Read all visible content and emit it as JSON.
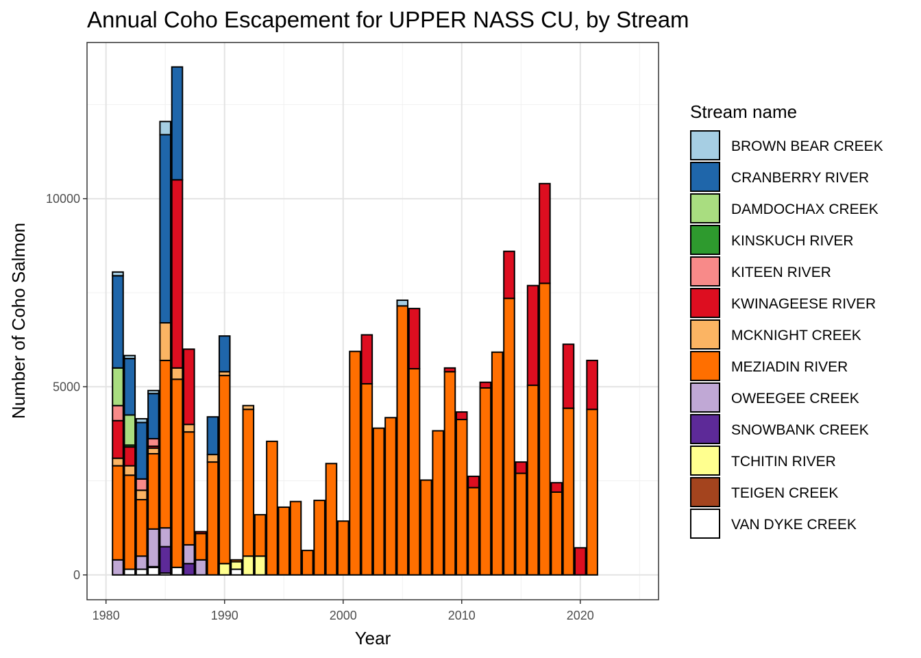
{
  "chart_data": {
    "type": "bar",
    "stacked": true,
    "title": "Annual Coho Escapement for UPPER NASS CU, by Stream",
    "xlabel": "Year",
    "ylabel": "Number of Coho Salmon",
    "xlim": [
      1978.4,
      2026.6
    ],
    "ylim": [
      -660,
      14150
    ],
    "x_ticks": [
      1980,
      1990,
      2000,
      2010,
      2020
    ],
    "y_ticks": [
      0,
      5000,
      10000
    ],
    "grid": true,
    "legend": {
      "title": "Stream name",
      "position": "right"
    },
    "series": [
      {
        "name": "BROWN BEAR CREEK",
        "color": "#A6CEE3",
        "values": {
          "1981": 100,
          "1982": 80,
          "1983": 100,
          "1984": 80,
          "1985": 350,
          "1986": 0,
          "1990": 0,
          "2005": 150
        }
      },
      {
        "name": "CRANBERRY RIVER",
        "color": "#1F66AA",
        "values": {
          "1981": 2450,
          "1982": 1500,
          "1983": 1500,
          "1984": 1200,
          "1985": 5000,
          "1986": 3000,
          "1989": 1000,
          "1990": 950
        }
      },
      {
        "name": "DAMDOCHAX CREEK",
        "color": "#A9DD80",
        "values": {
          "1981": 1000,
          "1982": 800
        }
      },
      {
        "name": "KINSKUCH RIVER",
        "color": "#2E9A2E",
        "values": {
          "1982": 50
        }
      },
      {
        "name": "KITEEN RIVER",
        "color": "#F88A89",
        "values": {
          "1981": 400,
          "1983": 300,
          "1984": 200
        }
      },
      {
        "name": "KWINAGEESE RIVER",
        "color": "#DD0E20",
        "values": {
          "1981": 1000,
          "1982": 500,
          "1984": 50,
          "1986": 5000,
          "1987": 2000,
          "1988": 50,
          "2002": 1300,
          "2006": 1600,
          "2009": 100,
          "2010": 200,
          "2011": 300,
          "2012": 150,
          "2014": 1250,
          "2015": 300,
          "2016": 2650,
          "2017": 2650,
          "2018": 250,
          "2019": 1700,
          "2020": 720,
          "2021": 1300
        }
      },
      {
        "name": "MCKNIGHT CREEK",
        "color": "#FBB463",
        "values": {
          "1981": 200,
          "1982": 250,
          "1983": 250,
          "1984": 150,
          "1985": 1000,
          "1986": 300,
          "1987": 200,
          "1989": 200,
          "1990": 100,
          "1992": 100
        }
      },
      {
        "name": "MEZIADIN RIVER",
        "color": "#FF6F00",
        "values": {
          "1981": 2500,
          "1982": 2500,
          "1983": 1500,
          "1984": 2000,
          "1985": 4450,
          "1986": 5000,
          "1987": 3000,
          "1988": 700,
          "1989": 3000,
          "1990": 5000,
          "1991": 50,
          "1992": 3900,
          "1993": 1100,
          "1994": 3550,
          "1995": 1800,
          "1996": 1950,
          "1997": 650,
          "1998": 1980,
          "1999": 2960,
          "2000": 1430,
          "2001": 5940,
          "2002": 5080,
          "2003": 3900,
          "2004": 4180,
          "2005": 7150,
          "2006": 5480,
          "2007": 2520,
          "2008": 3830,
          "2009": 5400,
          "2010": 4130,
          "2011": 2320,
          "2012": 4970,
          "2013": 5920,
          "2014": 7350,
          "2015": 2700,
          "2016": 5040,
          "2017": 7750,
          "2018": 2200,
          "2019": 4430,
          "2021": 4400
        }
      },
      {
        "name": "OWEEGEE CREEK",
        "color": "#C0A8D5",
        "values": {
          "1981": 400,
          "1983": 350,
          "1984": 1000,
          "1985": 500,
          "1987": 500,
          "1988": 400
        }
      },
      {
        "name": "SNOWBANK CREEK",
        "color": "#5D2A98",
        "values": {
          "1985": 700,
          "1987": 300
        }
      },
      {
        "name": "TCHITIN RIVER",
        "color": "#FFFF8F",
        "values": {
          "1990": 300,
          "1991": 200,
          "1992": 500,
          "1993": 500
        }
      },
      {
        "name": "TEIGEN CREEK",
        "color": "#A4441E",
        "values": {
          "1984": 20
        }
      },
      {
        "name": "VAN DYKE CREEK",
        "color": "#FFFFFF",
        "values": {
          "1982": 150,
          "1983": 150,
          "1984": 200,
          "1985": 50,
          "1986": 200,
          "1991": 150
        }
      }
    ]
  }
}
